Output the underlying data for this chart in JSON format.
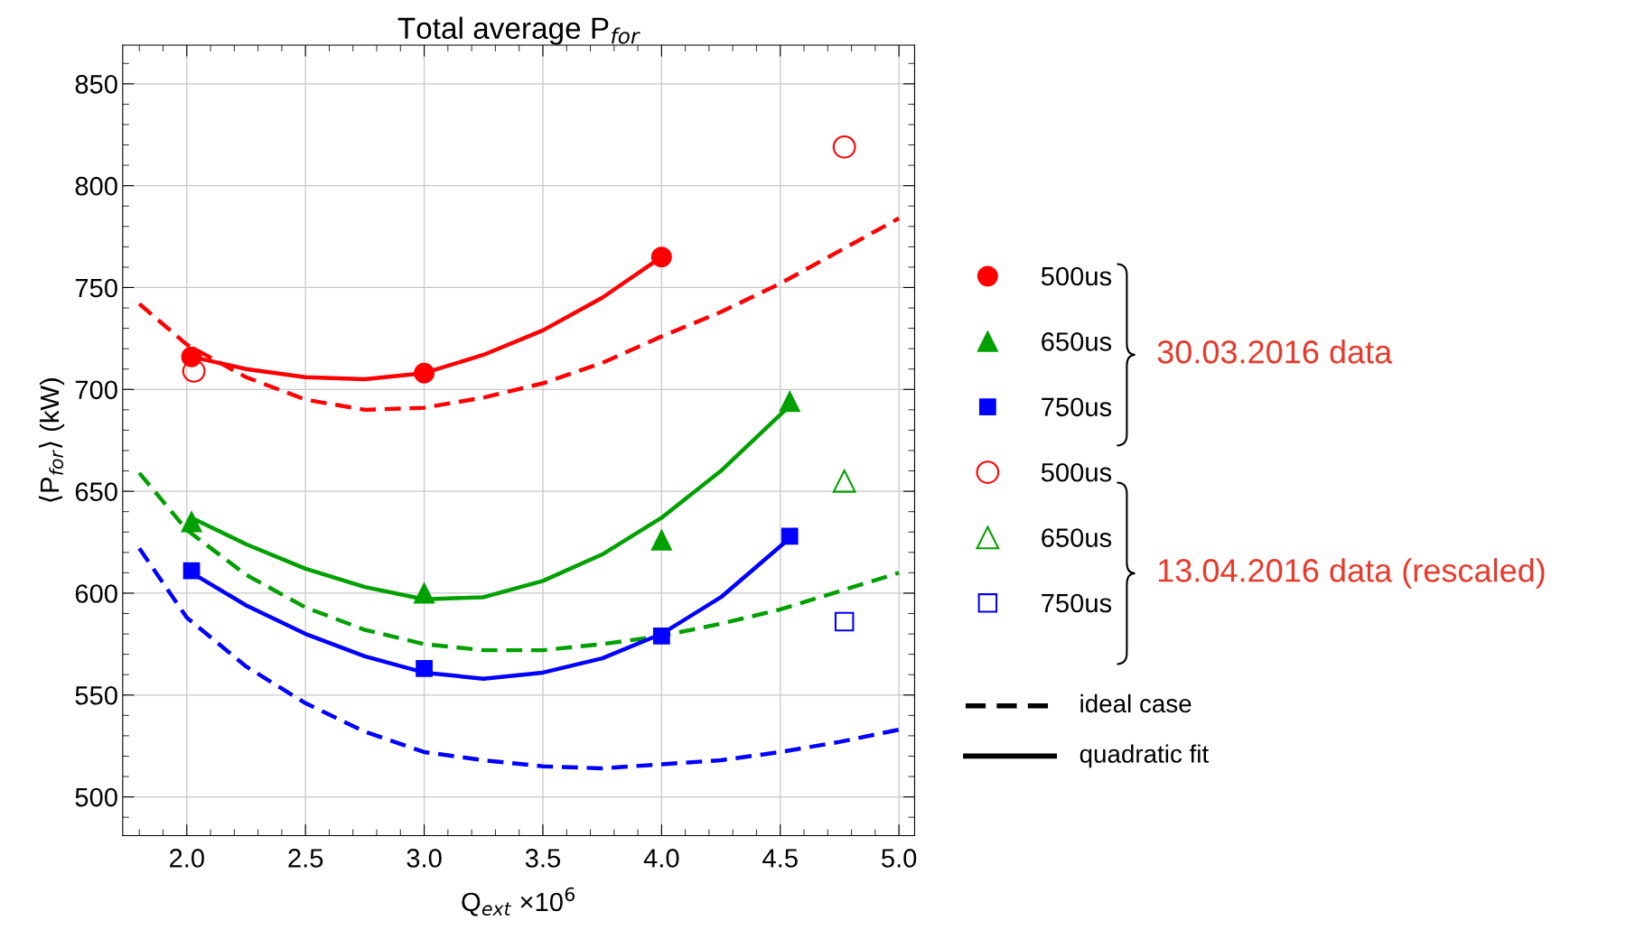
{
  "chart_data": {
    "type": "scatter",
    "title": "Total average P$_{for}$",
    "xlabel": "Q$_{ext}$ ×10$^{6}$",
    "ylabel": "⟨P$_{for}$⟩ (kW)",
    "xlim": [
      1.73,
      5.066
    ],
    "ylim": [
      481,
      869
    ],
    "xticks": [
      {
        "value": 2.0,
        "label": "2.0"
      },
      {
        "value": 2.5,
        "label": "2.5"
      },
      {
        "value": 3.0,
        "label": "3.0"
      },
      {
        "value": 3.5,
        "label": "3.5"
      },
      {
        "value": 4.0,
        "label": "4.0"
      },
      {
        "value": 4.5,
        "label": "4.5"
      },
      {
        "value": 5.0,
        "label": "5.0"
      }
    ],
    "yticks": [
      500,
      550,
      600,
      650,
      700,
      750,
      800,
      850
    ],
    "grid": true,
    "legend": "right",
    "annotations": [
      "30.03.2016 data",
      "13.04.2016 data (rescaled)",
      "ideal case",
      "quadratic fit"
    ],
    "series": [
      {
        "type": "line",
        "line_style": "dashed",
        "color": "#ff0000",
        "x": [
          1.8,
          2.0,
          2.25,
          2.5,
          2.75,
          3.0,
          3.25,
          3.5,
          3.75,
          4.0,
          4.25,
          4.5,
          4.75,
          5.0
        ],
        "values": [
          742,
          722,
          706,
          695,
          690,
          691,
          696,
          703,
          713,
          726,
          738,
          752,
          768,
          784
        ]
      },
      {
        "type": "line",
        "line_style": "dashed",
        "color": "#00a000",
        "x": [
          1.8,
          2.0,
          2.25,
          2.5,
          2.75,
          3.0,
          3.25,
          3.5,
          3.75,
          4.0,
          4.25,
          4.5,
          4.75,
          5.0
        ],
        "values": [
          659,
          631,
          609,
          593,
          582,
          575,
          572,
          572,
          575,
          579,
          585,
          592,
          601,
          610
        ]
      },
      {
        "type": "line",
        "line_style": "dashed",
        "color": "#0000ff",
        "x": [
          1.8,
          2.0,
          2.25,
          2.5,
          2.75,
          3.0,
          3.25,
          3.5,
          3.75,
          4.0,
          4.25,
          4.5,
          4.75,
          5.0
        ],
        "values": [
          622,
          588,
          564,
          546,
          532,
          522,
          518,
          515,
          514,
          516,
          518,
          522,
          527,
          533
        ]
      },
      {
        "type": "line",
        "line_style": "solid",
        "color": "#ff0000",
        "x": [
          2.02,
          2.25,
          2.5,
          2.75,
          3.0,
          3.25,
          3.5,
          3.75,
          4.0
        ],
        "values": [
          716,
          710,
          706,
          705,
          708,
          717,
          729,
          745,
          765
        ]
      },
      {
        "type": "line",
        "line_style": "solid",
        "color": "#00a000",
        "x": [
          2.02,
          2.25,
          2.5,
          2.75,
          3.0,
          3.25,
          3.5,
          3.75,
          4.0,
          4.25,
          4.54
        ],
        "values": [
          637,
          624,
          612,
          603,
          597,
          598,
          606,
          619,
          637,
          660,
          692
        ]
      },
      {
        "type": "line",
        "line_style": "solid",
        "color": "#0000ff",
        "x": [
          2.02,
          2.25,
          2.5,
          2.75,
          3.0,
          3.25,
          3.5,
          3.75,
          4.0,
          4.25,
          4.54
        ],
        "values": [
          610,
          594,
          580,
          569,
          561,
          558,
          561,
          568,
          580,
          598,
          627
        ]
      },
      {
        "name": "500us",
        "marker": "circle",
        "color": "#ff0000",
        "x": [
          2.02,
          3.0,
          4.0
        ],
        "values": [
          716,
          708,
          765
        ]
      },
      {
        "name": "650us",
        "marker": "triangle",
        "color": "#00a000",
        "x": [
          2.02,
          3.0,
          4.0,
          4.54
        ],
        "values": [
          635,
          600,
          626,
          694
        ]
      },
      {
        "name": "750us",
        "marker": "square",
        "color": "#0000ff",
        "x": [
          2.02,
          3.0,
          4.0,
          4.54
        ],
        "values": [
          611,
          563,
          579,
          628
        ]
      },
      {
        "name": "500us",
        "marker": "circle",
        "color": "#ff0000",
        "x": [
          2.03,
          4.77
        ],
        "values": [
          709,
          819
        ]
      },
      {
        "name": "650us",
        "marker": "triangle",
        "color": "#00a000",
        "x": [
          4.77
        ],
        "values": [
          655
        ]
      },
      {
        "name": "750us",
        "marker": "square",
        "color": "#0000ff",
        "x": [
          4.77
        ],
        "values": [
          586
        ]
      }
    ]
  }
}
